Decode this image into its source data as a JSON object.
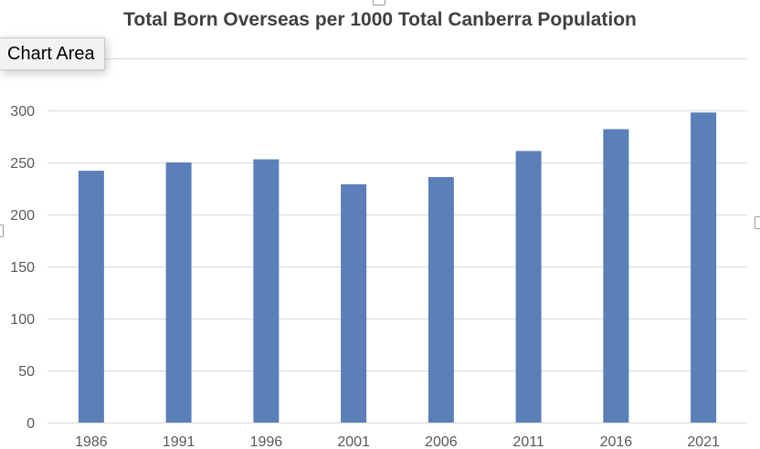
{
  "tooltip": {
    "label": "Chart Area"
  },
  "chart_data": {
    "type": "bar",
    "title": "Total Born Overseas per 1000 Total Canberra Population",
    "xlabel": "",
    "ylabel": "",
    "categories": [
      "1986",
      "1991",
      "1996",
      "2001",
      "2006",
      "2011",
      "2016",
      "2021"
    ],
    "series": [
      {
        "values": [
          242,
          250,
          253,
          229,
          236,
          261,
          282,
          298
        ]
      }
    ],
    "ylim": [
      0,
      350
    ],
    "yticks": [
      "0",
      "50",
      "100",
      "150",
      "200",
      "250",
      "300"
    ],
    "grid": true,
    "bar_color": "#5b7fb8",
    "grid_color": "#d9d9d9"
  }
}
